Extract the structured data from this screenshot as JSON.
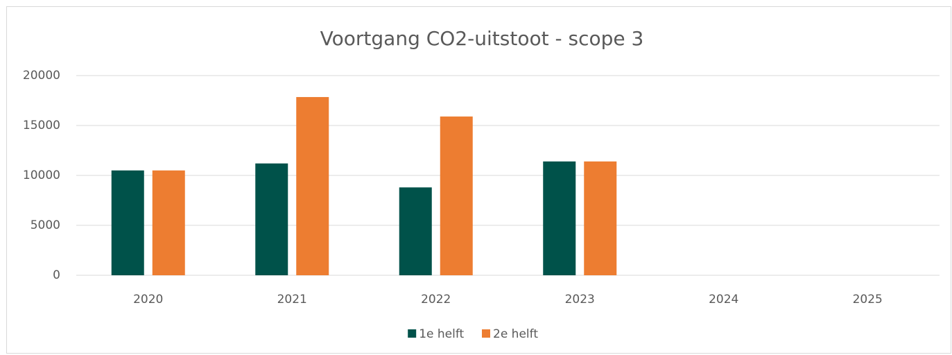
{
  "chart_data": {
    "type": "bar",
    "title": "Voortgang CO2-uitstoot - scope 3",
    "categories": [
      "2020",
      "2021",
      "2022",
      "2023",
      "2024",
      "2025"
    ],
    "series": [
      {
        "name": "1e helft",
        "color": "#00524a",
        "values": [
          10500,
          11200,
          8800,
          11400,
          null,
          null
        ]
      },
      {
        "name": "2e helft",
        "color": "#ed7d31",
        "values": [
          10500,
          17850,
          15900,
          11400,
          null,
          null
        ]
      }
    ],
    "ylim": [
      0,
      20000
    ],
    "yticks": [
      0,
      5000,
      10000,
      15000,
      20000
    ],
    "grid": true,
    "legend": "bottom"
  }
}
